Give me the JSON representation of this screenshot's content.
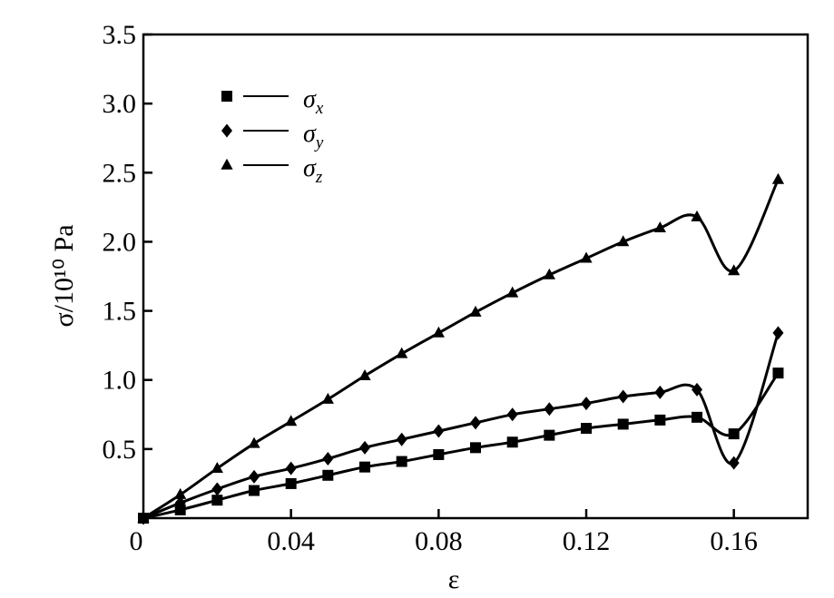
{
  "chart_data": {
    "type": "line",
    "xlabel": "ε",
    "ylabel": "σ/10¹⁰ Pa",
    "xlim": [
      0,
      0.18
    ],
    "ylim": [
      0,
      3.5
    ],
    "x_ticks": [
      0.04,
      0.08,
      0.12,
      0.16
    ],
    "x_tick_labels": [
      "0.04",
      "0.08",
      "0.12",
      "0.16"
    ],
    "y_ticks": [
      0.5,
      1.0,
      1.5,
      2.0,
      2.5,
      3.0,
      3.5
    ],
    "y_tick_labels": [
      "0.5",
      "1.0",
      "1.5",
      "2.0",
      "2.5",
      "3.0",
      "3.5"
    ],
    "origin_label": "0",
    "grid": false,
    "legend_position": "top-left",
    "series": [
      {
        "name": "σx",
        "symbol": "σ",
        "subscript": "x",
        "marker": "square",
        "x": [
          0,
          0.01,
          0.02,
          0.03,
          0.04,
          0.05,
          0.06,
          0.07,
          0.08,
          0.09,
          0.1,
          0.11,
          0.12,
          0.13,
          0.14,
          0.15,
          0.16,
          0.172
        ],
        "y": [
          0.0,
          0.06,
          0.13,
          0.2,
          0.25,
          0.31,
          0.37,
          0.41,
          0.46,
          0.51,
          0.55,
          0.6,
          0.65,
          0.68,
          0.71,
          0.73,
          0.61,
          1.05
        ]
      },
      {
        "name": "σy",
        "symbol": "σ",
        "subscript": "y",
        "marker": "diamond",
        "x": [
          0,
          0.01,
          0.02,
          0.03,
          0.04,
          0.05,
          0.06,
          0.07,
          0.08,
          0.09,
          0.1,
          0.11,
          0.12,
          0.13,
          0.14,
          0.15,
          0.16,
          0.172
        ],
        "y": [
          0.0,
          0.11,
          0.21,
          0.3,
          0.36,
          0.43,
          0.51,
          0.57,
          0.63,
          0.69,
          0.75,
          0.79,
          0.83,
          0.88,
          0.91,
          0.93,
          0.4,
          1.34
        ]
      },
      {
        "name": "σz",
        "symbol": "σ",
        "subscript": "z",
        "marker": "triangle",
        "x": [
          0,
          0.01,
          0.02,
          0.03,
          0.04,
          0.05,
          0.06,
          0.07,
          0.08,
          0.09,
          0.1,
          0.11,
          0.12,
          0.13,
          0.14,
          0.15,
          0.16,
          0.172
        ],
        "y": [
          0.0,
          0.17,
          0.36,
          0.54,
          0.7,
          0.86,
          1.03,
          1.19,
          1.34,
          1.49,
          1.63,
          1.76,
          1.88,
          2.0,
          2.1,
          2.18,
          1.79,
          2.45
        ]
      }
    ]
  }
}
